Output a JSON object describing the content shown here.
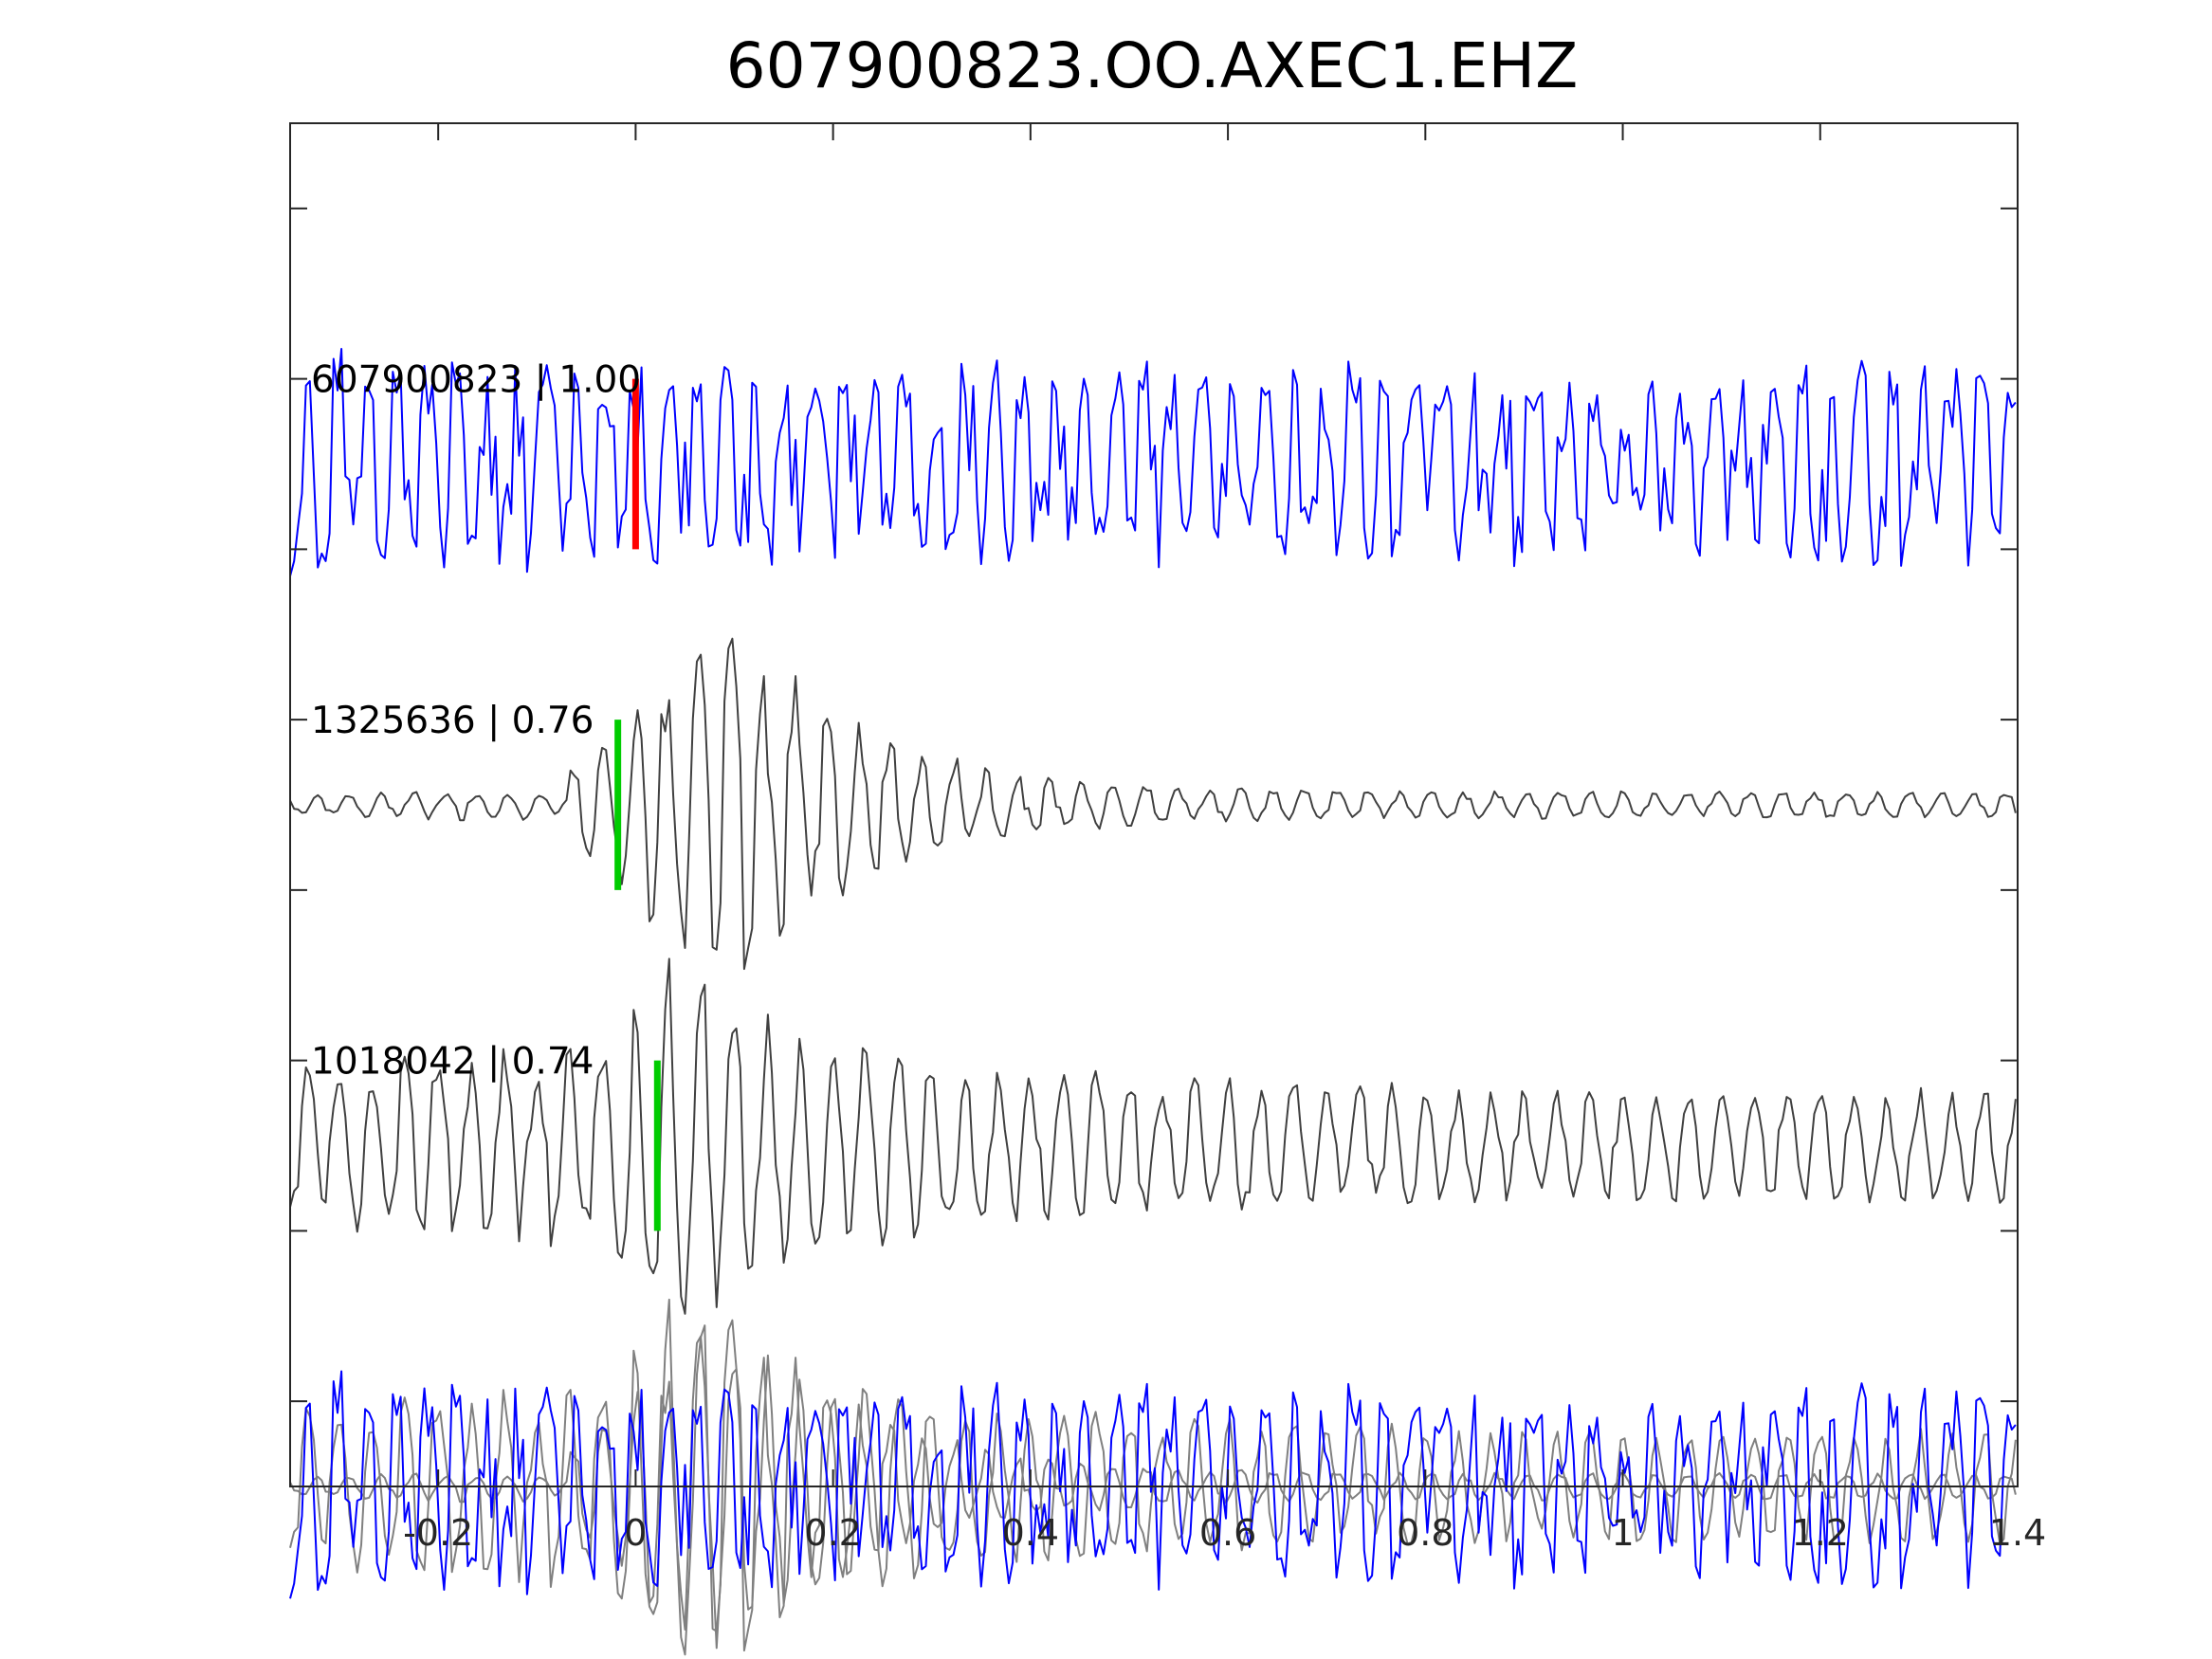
{
  "chart_data": {
    "type": "line",
    "title": "607900823.OO.AXEC1.EHZ",
    "xlabel": "",
    "ylabel": "",
    "xlim": [
      -0.35,
      1.4
    ],
    "xticks": [
      -0.2,
      0,
      0.2,
      0.4,
      0.6,
      0.8,
      1,
      1.2,
      1.4
    ],
    "xtick_labels": [
      "-0.2",
      "0",
      "0.2",
      "0.4",
      "0.6",
      "0.8",
      "1",
      "1.2",
      "1.4"
    ],
    "ylim": [
      0,
      8
    ],
    "yticks": [
      0.5,
      1.5,
      2.5,
      3.5,
      4.5,
      5.5,
      6.5,
      7.5
    ],
    "grid": false,
    "dt": 0.004,
    "traces": [
      {
        "label": "607900823 | 1.00",
        "offset": 6,
        "color": "#0000ff",
        "pick_time": 0.0,
        "pick_color": "#ff0000",
        "waveform": {
          "kind": "noise_burst",
          "amp_pre": 0.55,
          "amp_post": 0.5,
          "freq": 33,
          "seed": 7
        }
      },
      {
        "label": "1325636 | 0.76",
        "offset": 4,
        "color": "#404040",
        "pick_time": -0.018,
        "pick_color": "#00cc00",
        "waveform": {
          "kind": "wavelet",
          "onset": -0.07,
          "peak_time": 0.1,
          "peak_amp": 1.05,
          "rise": 0.12,
          "decay": 0.13,
          "floor": 0.07,
          "freq": 31,
          "seed": 3
        }
      },
      {
        "label": "1018042 | 0.74",
        "offset": 2,
        "color": "#404040",
        "pick_time": 0.022,
        "pick_color": "#00cc00",
        "waveform": {
          "kind": "wavelet",
          "onset": -0.05,
          "peak_time": 0.02,
          "peak_amp": 1.0,
          "rise": 0.05,
          "decay": 0.22,
          "floor": 0.3,
          "pre_amp": 0.55,
          "freq": 30,
          "seed": 11
        }
      }
    ],
    "overlay": {
      "offset": 0,
      "series": [
        {
          "source": 1,
          "color": "#808080"
        },
        {
          "source": 2,
          "color": "#808080"
        },
        {
          "source": 0,
          "color": "#0000ff"
        }
      ]
    }
  }
}
